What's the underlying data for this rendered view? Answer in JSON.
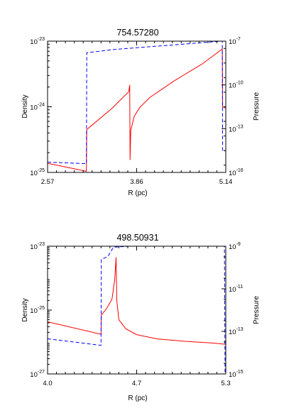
{
  "chart_data": [
    {
      "type": "line",
      "title": "754.57280",
      "xlabel": "R (pc)",
      "ylabel": "Density",
      "y2label": "Pressure",
      "xlim": [
        2.57,
        5.14
      ],
      "xticks": [
        "2.57",
        "3.86",
        "5.14"
      ],
      "ylim": [
        1e-25,
        1e-23
      ],
      "yscale": "log",
      "yticks": [
        {
          "value": 1e-23,
          "base": "10",
          "exp": "-23"
        },
        {
          "value": 1e-24,
          "base": "10",
          "exp": "-24"
        },
        {
          "value": 1e-25,
          "base": "10",
          "exp": "-25"
        }
      ],
      "y2lim": [
        1e-16,
        1e-07
      ],
      "y2scale": "log",
      "y2ticks": [
        {
          "value": 1e-07,
          "base": "10",
          "exp": "-7"
        },
        {
          "value": 1e-10,
          "base": "10",
          "exp": "-10"
        },
        {
          "value": 1e-13,
          "base": "10",
          "exp": "-13"
        },
        {
          "value": 1e-16,
          "base": "10",
          "exp": "-16"
        }
      ],
      "grid": false,
      "series": [
        {
          "axis": "left",
          "color": "#ff0000",
          "dash": "solid",
          "points": [
            [
              2.57,
              1.38e-25
            ],
            [
              3.13,
              1.04e-25
            ],
            [
              3.135,
              4.5e-25
            ],
            [
              3.5,
              9.5e-25
            ],
            [
              3.74,
              1.7e-24
            ],
            [
              3.755,
              2.15e-24
            ],
            [
              3.76,
              1.55e-25
            ],
            [
              3.77,
              4.4e-25
            ],
            [
              3.82,
              7.2e-25
            ],
            [
              3.9,
              9.8e-25
            ],
            [
              4.05,
              1.4e-24
            ],
            [
              4.4,
              2.5e-24
            ],
            [
              4.8,
              4.5e-24
            ],
            [
              5.09,
              7.6e-24
            ],
            [
              5.095,
              1e-24
            ],
            [
              5.14,
              9.5e-25
            ]
          ]
        },
        {
          "axis": "right",
          "color": "#0000ff",
          "dash": "dashed",
          "points": [
            [
              2.57,
              5e-16
            ],
            [
              3.13,
              4e-16
            ],
            [
              3.135,
              1.6e-08
            ],
            [
              3.5,
              2.6e-08
            ],
            [
              4.0,
              4e-08
            ],
            [
              5.08,
              1e-07
            ],
            [
              5.09,
              1e-07
            ],
            [
              5.095,
              3e-15
            ],
            [
              5.14,
              3e-15
            ]
          ]
        }
      ]
    },
    {
      "type": "line",
      "title": "498.50931",
      "xlabel": "R (pc)",
      "ylabel": "Density",
      "y2label": "Pressure",
      "xlim": [
        4.0,
        5.3
      ],
      "xticks": [
        "4.0",
        "4.7",
        "5.3"
      ],
      "ylim": [
        1e-27,
        1e-23
      ],
      "yscale": "log",
      "yticks": [
        {
          "value": 1e-23,
          "base": "10",
          "exp": "-23"
        },
        {
          "value": 1e-25,
          "base": "10",
          "exp": "-25"
        },
        {
          "value": 1e-27,
          "base": "10",
          "exp": "-27"
        }
      ],
      "y2lim": [
        1e-15,
        1e-09
      ],
      "y2scale": "log",
      "y2ticks": [
        {
          "value": 1e-09,
          "base": "10",
          "exp": "-9"
        },
        {
          "value": 1e-11,
          "base": "10",
          "exp": "-11"
        },
        {
          "value": 1e-13,
          "base": "10",
          "exp": "-13"
        },
        {
          "value": 1e-15,
          "base": "10",
          "exp": "-15"
        }
      ],
      "grid": false,
      "series": [
        {
          "axis": "left",
          "color": "#ff0000",
          "dash": "solid",
          "points": [
            [
              4.0,
              4.3e-26
            ],
            [
              4.39,
              1.75e-26
            ],
            [
              4.392,
              7e-26
            ],
            [
              4.43,
              1.1e-25
            ],
            [
              4.47,
              2.2e-25
            ],
            [
              4.49,
              9e-25
            ],
            [
              4.5,
              4.5e-24
            ],
            [
              4.505,
              2e-25
            ],
            [
              4.52,
              5e-26
            ],
            [
              4.57,
              2.6e-26
            ],
            [
              4.65,
              1.7e-26
            ],
            [
              4.8,
              1.25e-26
            ],
            [
              5.0,
              1.05e-26
            ],
            [
              5.2,
              9.3e-27
            ],
            [
              5.3,
              8.5e-27
            ]
          ]
        },
        {
          "axis": "right",
          "color": "#0000ff",
          "dash": "dashed",
          "points": [
            [
              4.0,
              4.5e-14
            ],
            [
              4.39,
              2.2e-14
            ],
            [
              4.392,
              2.4e-10
            ],
            [
              4.44,
              3.3e-10
            ],
            [
              4.48,
              9e-10
            ],
            [
              4.6,
              1e-09
            ],
            [
              5.29,
              1.05e-09
            ],
            [
              5.295,
              1e-15
            ],
            [
              5.3,
              1e-15
            ]
          ]
        }
      ]
    }
  ]
}
